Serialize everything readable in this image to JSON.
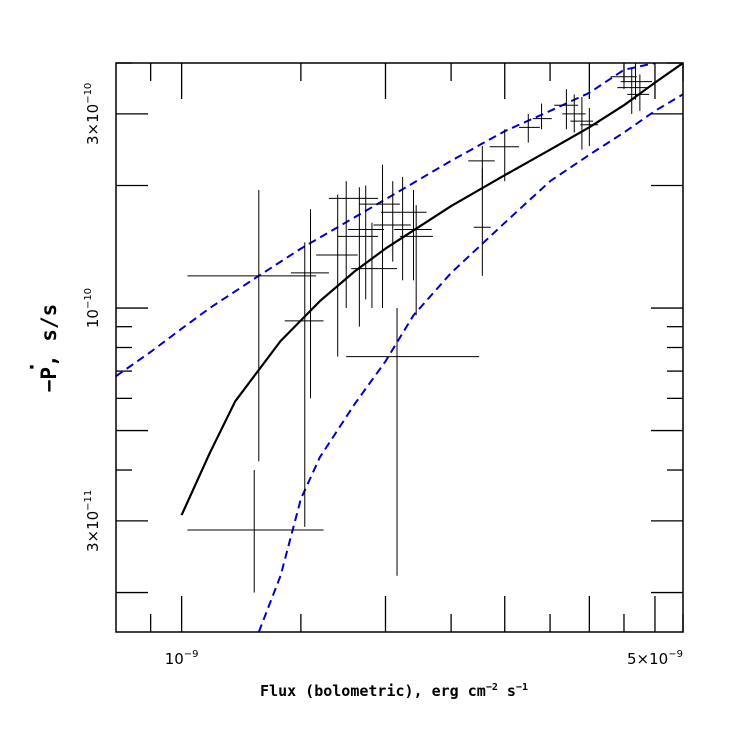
{
  "chart_data": {
    "type": "scatter",
    "title": "",
    "x_scale": "log",
    "y_scale": "log",
    "xlim": [
      8e-10,
      5.5e-09
    ],
    "ylim": [
      1.6e-11,
      4e-10
    ],
    "xlabel": {
      "prefix": "Flux (bolometric), erg cm",
      "sup1": "−2",
      "mid": " s",
      "sup2": "−1"
    },
    "ylabel": {
      "minus": "−",
      "symbol": "P",
      "dot": "·",
      "suffix": ", s/s"
    },
    "x_ticks_labeled": [
      {
        "value": 1e-09,
        "mantissa": "10",
        "exp": "−9"
      },
      {
        "value": 5e-09,
        "mantissa": "5×10",
        "exp": "−9"
      }
    ],
    "x_ticks_major": [
      1e-09,
      2e-09,
      3e-09,
      4e-09,
      5e-09
    ],
    "x_ticks_minor": [
      9e-10,
      1.5e-09,
      2.5e-09,
      3.5e-09,
      4.5e-09,
      5.5e-09
    ],
    "y_ticks_labeled": [
      {
        "value": 3e-10,
        "mantissa": "3×10",
        "exp": "−10"
      },
      {
        "value": 1e-10,
        "mantissa": "10",
        "exp": "−10"
      },
      {
        "value": 3e-11,
        "mantissa": "3×10",
        "exp": "−11"
      }
    ],
    "y_ticks_major": [
      2e-11,
      3e-11,
      5e-11,
      1e-10,
      2e-10,
      3e-10
    ],
    "y_ticks_minor": [
      4e-11,
      6e-11,
      7e-11,
      8e-11,
      9e-11,
      4e-10
    ],
    "points": [
      {
        "x": 1.28e-09,
        "y": 2.85e-11,
        "xerr": [
          1.02e-09,
          1.62e-09
        ],
        "yerr": [
          2e-11,
          4e-11
        ]
      },
      {
        "x": 1.3e-09,
        "y": 1.2e-10,
        "xerr": [
          1.02e-09,
          1.58e-09
        ],
        "yerr": [
          4.2e-11,
          1.95e-10
        ]
      },
      {
        "x": 1.55e-09,
        "y": 1.22e-10,
        "xerr": [
          1.45e-09,
          1.65e-09
        ],
        "yerr": [
          6e-11,
          1.75e-10
        ]
      },
      {
        "x": 1.52e-09,
        "y": 9.3e-11,
        "xerr": [
          1.42e-09,
          1.62e-09
        ],
        "yerr": [
          2.9e-11,
          1.45e-10
        ]
      },
      {
        "x": 1.7e-09,
        "y": 1.35e-10,
        "xerr": [
          1.58e-09,
          1.82e-09
        ],
        "yerr": [
          7.6e-11,
          1.9e-10
        ]
      },
      {
        "x": 1.75e-09,
        "y": 1.86e-10,
        "xerr": [
          1.65e-09,
          1.95e-09
        ],
        "yerr": [
          1e-10,
          2.05e-10
        ]
      },
      {
        "x": 1.83e-09,
        "y": 1.5e-10,
        "xerr": [
          1.7e-09,
          1.95e-09
        ],
        "yerr": [
          9e-11,
          1.98e-10
        ]
      },
      {
        "x": 1.87e-09,
        "y": 1.56e-10,
        "xerr": [
          1.76e-09,
          1.99e-09
        ],
        "yerr": [
          1.05e-10,
          2e-10
        ]
      },
      {
        "x": 1.91e-09,
        "y": 1.25e-10,
        "xerr": [
          1.78e-09,
          2.08e-09
        ],
        "yerr": [
          1e-10,
          1.62e-10
        ]
      },
      {
        "x": 1.98e-09,
        "y": 1.8e-10,
        "xerr": [
          1.83e-09,
          2.1e-09
        ],
        "yerr": [
          1e-10,
          2.25e-10
        ]
      },
      {
        "x": 2.05e-09,
        "y": 1.6e-10,
        "xerr": [
          1.92e-09,
          2.18e-09
        ],
        "yerr": [
          1.3e-10,
          2.05e-10
        ]
      },
      {
        "x": 2.08e-09,
        "y": 7.6e-11,
        "xerr": [
          1.75e-09,
          2.75e-09
        ],
        "yerr": [
          2.2e-11,
          1e-10
        ]
      },
      {
        "x": 2.12e-09,
        "y": 1.72e-10,
        "xerr": [
          1.97e-09,
          2.3e-09
        ],
        "yerr": [
          1.17e-10,
          2.1e-10
        ]
      },
      {
        "x": 2.2e-09,
        "y": 1.56e-10,
        "xerr": [
          2.06e-09,
          2.34e-09
        ],
        "yerr": [
          1.17e-10,
          1.95e-10
        ]
      },
      {
        "x": 2.22e-09,
        "y": 1.5e-10,
        "xerr": [
          2.1e-09,
          2.35e-09
        ],
        "yerr": [
          9.6e-11,
          1.79e-10
        ]
      },
      {
        "x": 2.78e-09,
        "y": 2.3e-10,
        "xerr": [
          2.65e-09,
          2.9e-09
        ],
        "yerr": [
          1.95e-10,
          2.5e-10
        ]
      },
      {
        "x": 2.78e-09,
        "y": 1.58e-10,
        "xerr": [
          2.7e-09,
          2.86e-09
        ],
        "yerr": [
          1.2e-10,
          2.2e-10
        ]
      },
      {
        "x": 3e-09,
        "y": 2.49e-10,
        "xerr": [
          2.85e-09,
          3.15e-09
        ],
        "yerr": [
          2.05e-10,
          2.75e-10
        ]
      },
      {
        "x": 3.25e-09,
        "y": 2.78e-10,
        "xerr": [
          3.15e-09,
          3.38e-09
        ],
        "yerr": [
          2.55e-10,
          3e-10
        ]
      },
      {
        "x": 3.4e-09,
        "y": 2.92e-10,
        "xerr": [
          3.3e-09,
          3.52e-09
        ],
        "yerr": [
          2.75e-10,
          3.18e-10
        ]
      },
      {
        "x": 3.7e-09,
        "y": 3.15e-10,
        "xerr": [
          3.55e-09,
          3.85e-09
        ],
        "yerr": [
          2.75e-10,
          3.45e-10
        ]
      },
      {
        "x": 3.8e-09,
        "y": 3e-10,
        "xerr": [
          3.65e-09,
          3.95e-09
        ],
        "yerr": [
          2.7e-10,
          3.35e-10
        ]
      },
      {
        "x": 3.9e-09,
        "y": 2.88e-10,
        "xerr": [
          3.75e-09,
          4.05e-09
        ],
        "yerr": [
          2.45e-10,
          3.3e-10
        ]
      },
      {
        "x": 4e-09,
        "y": 2.82e-10,
        "xerr": [
          3.88e-09,
          4.12e-09
        ],
        "yerr": [
          2.5e-10,
          3.1e-10
        ]
      },
      {
        "x": 4.5e-09,
        "y": 3.7e-10,
        "xerr": [
          4.3e-09,
          4.7e-09
        ],
        "yerr": [
          3.45e-10,
          3.95e-10
        ]
      },
      {
        "x": 4.62e-09,
        "y": 3.48e-10,
        "xerr": [
          4.4e-09,
          4.9e-09
        ],
        "yerr": [
          3e-10,
          3.9e-10
        ]
      },
      {
        "x": 4.68e-09,
        "y": 3.6e-10,
        "xerr": [
          4.45e-09,
          4.95e-09
        ],
        "yerr": [
          3.25e-10,
          4e-10
        ]
      },
      {
        "x": 4.75e-09,
        "y": 3.35e-10,
        "xerr": [
          4.55e-09,
          4.9e-09
        ],
        "yerr": [
          3.05e-10,
          3.75e-10
        ]
      }
    ],
    "series": [
      {
        "style": "solid",
        "color": "#000000",
        "points": [
          [
            1e-09,
            3.1e-11
          ],
          [
            1.1e-09,
            4.4e-11
          ],
          [
            1.2e-09,
            5.9e-11
          ],
          [
            1.4e-09,
            8.3e-11
          ],
          [
            1.6e-09,
            1.04e-10
          ],
          [
            1.8e-09,
            1.23e-10
          ],
          [
            2e-09,
            1.4e-10
          ],
          [
            2.5e-09,
            1.78e-10
          ],
          [
            3e-09,
            2.12e-10
          ],
          [
            3.5e-09,
            2.45e-10
          ],
          [
            4e-09,
            2.78e-10
          ],
          [
            4.5e-09,
            3.15e-10
          ],
          [
            5e-09,
            3.58e-10
          ],
          [
            5.5e-09,
            4e-10
          ]
        ]
      },
      {
        "style": "dashed",
        "color": "#0000cc",
        "points": [
          [
            8e-10,
            6.8e-11
          ],
          [
            9e-10,
            7.8e-11
          ],
          [
            1e-09,
            8.9e-11
          ],
          [
            1.1e-09,
            1e-10
          ],
          [
            1.3e-09,
            1.2e-10
          ],
          [
            1.5e-09,
            1.4e-10
          ],
          [
            1.8e-09,
            1.67e-10
          ],
          [
            2e-09,
            1.85e-10
          ],
          [
            2.5e-09,
            2.3e-10
          ],
          [
            3e-09,
            2.72e-10
          ],
          [
            3.5e-09,
            3.05e-10
          ],
          [
            4e-09,
            3.38e-10
          ],
          [
            4.5e-09,
            3.85e-10
          ],
          [
            5e-09,
            4e-10
          ]
        ]
      },
      {
        "style": "dashed",
        "color": "#0000cc",
        "points": [
          [
            1.3e-09,
            1.6e-11
          ],
          [
            1.4e-09,
            2.2e-11
          ],
          [
            1.5e-09,
            3.4e-11
          ],
          [
            1.6e-09,
            4.3e-11
          ],
          [
            1.8e-09,
            5.8e-11
          ],
          [
            2e-09,
            7.4e-11
          ],
          [
            2.2e-09,
            9.6e-11
          ],
          [
            2.5e-09,
            1.22e-10
          ],
          [
            3e-09,
            1.62e-10
          ],
          [
            3.5e-09,
            2.05e-10
          ],
          [
            4e-09,
            2.38e-10
          ],
          [
            4.5e-09,
            2.7e-10
          ],
          [
            5e-09,
            3.05e-10
          ],
          [
            5.5e-09,
            3.35e-10
          ]
        ]
      }
    ],
    "grid": false,
    "legend": "none"
  }
}
